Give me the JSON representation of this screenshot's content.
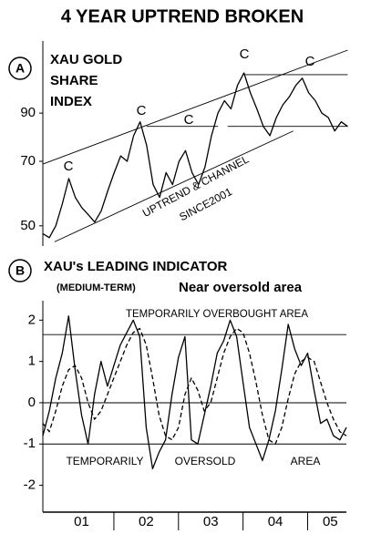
{
  "title": "4 YEAR UPTREND BROKEN",
  "chart_data": [
    {
      "type": "line",
      "label": "A",
      "title_lines": [
        "XAU GOLD",
        "SHARE",
        "INDEX"
      ],
      "annotations": [
        "C",
        "C",
        "C",
        "C",
        "C"
      ],
      "channel_label": [
        "UPTREND & CHANNEL",
        "SINCE2001"
      ],
      "ylog": true,
      "ylim": [
        45,
        125
      ],
      "yticks": [
        50,
        70,
        90
      ],
      "xlim": [
        0.9,
        5.65
      ],
      "x": [
        0.9,
        1.0,
        1.1,
        1.2,
        1.3,
        1.4,
        1.5,
        1.6,
        1.7,
        1.8,
        1.9,
        2.0,
        2.1,
        2.2,
        2.3,
        2.4,
        2.5,
        2.6,
        2.7,
        2.8,
        2.9,
        3.0,
        3.1,
        3.2,
        3.3,
        3.4,
        3.5,
        3.6,
        3.7,
        3.8,
        3.9,
        4.0,
        4.1,
        4.2,
        4.3,
        4.4,
        4.5,
        4.6,
        4.7,
        4.8,
        4.9,
        5.0,
        5.1,
        5.2,
        5.3,
        5.4,
        5.5,
        5.6
      ],
      "series": [
        {
          "color": "#000000",
          "style": "solid",
          "values": [
            48,
            47,
            50,
            56,
            64,
            58,
            55,
            53,
            51,
            54,
            60,
            66,
            72,
            70,
            80,
            86,
            76,
            62,
            58,
            66,
            62,
            70,
            74,
            66,
            62,
            68,
            80,
            90,
            96,
            92,
            104,
            111,
            100,
            92,
            84,
            80,
            88,
            94,
            98,
            104,
            108,
            100,
            96,
            90,
            88,
            82,
            86,
            84
          ]
        }
      ],
      "trend_lines": [
        {
          "x": [
            0.9,
            5.6
          ],
          "y": [
            69,
            125
          ]
        },
        {
          "x": [
            1.08,
            4.76
          ],
          "y": [
            46,
            82
          ]
        },
        {
          "x": [
            2.5,
            3.6
          ],
          "y": [
            84,
            84
          ]
        },
        {
          "x": [
            3.75,
            5.6
          ],
          "y": [
            84,
            84
          ]
        },
        {
          "x": [
            4.0,
            5.6
          ],
          "y": [
            110,
            110
          ]
        }
      ]
    },
    {
      "type": "line",
      "label": "B",
      "title": "XAU's LEADING INDICATOR",
      "subtitle": "(MEDIUM-TERM)",
      "note": "Near oversold area",
      "overbought_label": "TEMPORARILY OVERBOUGHT AREA",
      "oversold_labels": [
        "TEMPORARILY",
        "OVERSOLD",
        "AREA"
      ],
      "ylim": [
        -2.65,
        2.25
      ],
      "yticks": [
        2,
        1,
        0,
        -1,
        -2
      ],
      "xlim": [
        0.9,
        5.6
      ],
      "xticks": [
        {
          "value": 1.5,
          "label": "01"
        },
        {
          "value": 2.5,
          "label": "02"
        },
        {
          "value": 3.5,
          "label": "03"
        },
        {
          "value": 4.5,
          "label": "04"
        },
        {
          "value": 5.35,
          "label": "05"
        }
      ],
      "xminor": [
        2,
        3,
        4,
        5
      ],
      "reference_lines": [
        1.65,
        -1
      ],
      "x": [
        0.9,
        1.0,
        1.1,
        1.2,
        1.3,
        1.4,
        1.5,
        1.6,
        1.7,
        1.8,
        1.9,
        2.0,
        2.1,
        2.2,
        2.3,
        2.4,
        2.5,
        2.6,
        2.7,
        2.8,
        2.9,
        3.0,
        3.1,
        3.2,
        3.3,
        3.4,
        3.5,
        3.6,
        3.7,
        3.8,
        3.9,
        4.0,
        4.1,
        4.2,
        4.3,
        4.4,
        4.5,
        4.6,
        4.7,
        4.8,
        4.9,
        5.0,
        5.1,
        5.2,
        5.3,
        5.4,
        5.5,
        5.6
      ],
      "series": [
        {
          "color": "#000000",
          "style": "solid",
          "values": [
            -0.8,
            -0.2,
            0.6,
            1.2,
            2.1,
            0.8,
            -0.3,
            -1.0,
            0.2,
            1.0,
            0.4,
            0.9,
            1.4,
            1.7,
            2.0,
            1.6,
            -0.6,
            -1.6,
            -1.2,
            -0.9,
            0.2,
            1.1,
            1.6,
            -0.9,
            -1.0,
            -0.3,
            0.4,
            1.2,
            1.5,
            2.0,
            1.6,
            0.5,
            -0.6,
            -1.0,
            -1.4,
            -0.9,
            -0.2,
            0.8,
            1.9,
            1.3,
            0.9,
            1.2,
            0.3,
            -0.5,
            -0.4,
            -0.8,
            -0.9,
            -0.6
          ]
        },
        {
          "color": "#000000",
          "style": "dashed",
          "values": [
            -0.5,
            -0.7,
            -0.2,
            0.4,
            0.8,
            0.9,
            0.6,
            0.0,
            -0.4,
            -0.2,
            0.2,
            0.6,
            1.0,
            1.4,
            1.7,
            1.8,
            1.4,
            0.6,
            -0.3,
            -0.8,
            -0.9,
            -0.6,
            0.2,
            0.6,
            0.3,
            -0.2,
            0.0,
            0.6,
            1.2,
            1.6,
            1.8,
            1.7,
            1.2,
            0.5,
            -0.3,
            -0.9,
            -1.0,
            -0.6,
            0.1,
            0.7,
            1.0,
            1.1,
            1.0,
            0.5,
            0.0,
            -0.4,
            -0.7,
            -0.8
          ]
        }
      ]
    }
  ]
}
